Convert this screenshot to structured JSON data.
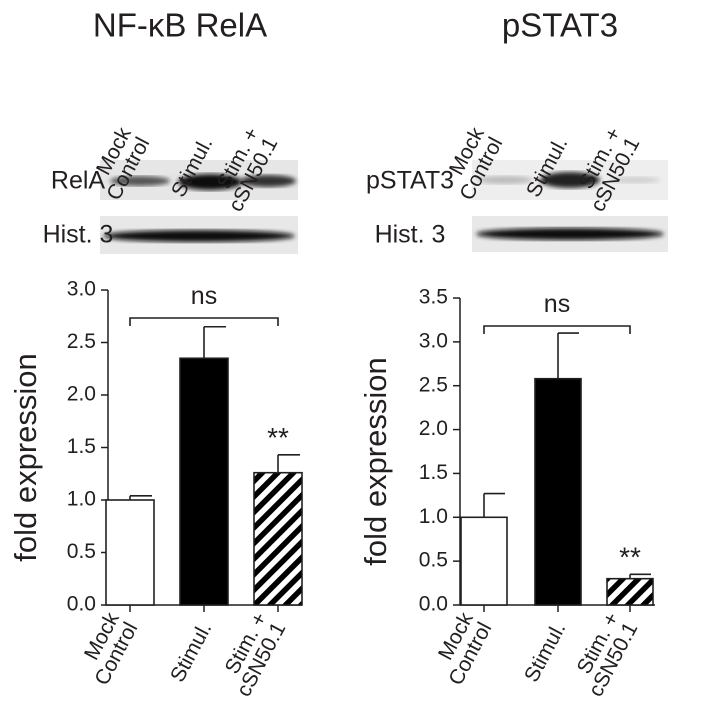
{
  "chart_data": [
    {
      "type": "bar",
      "title": "NF-κB RelA",
      "ylabel": "fold expression",
      "categories": [
        [
          "Mock",
          "Control"
        ],
        [
          "Stimul."
        ],
        [
          "Stim. +",
          "cSN50.1"
        ]
      ],
      "values": [
        1.0,
        2.35,
        1.26
      ],
      "errors": [
        0.04,
        0.3,
        0.17
      ],
      "fills": [
        "white",
        "black",
        "hatch"
      ],
      "significance": [
        null,
        null,
        "**"
      ],
      "bracket_label": "ns",
      "blots": [
        {
          "label": "RelA"
        },
        {
          "label": "Hist. 3"
        }
      ],
      "ylim": [
        0,
        3.0
      ],
      "yticks": [
        {
          "value": 0,
          "label": "0.0"
        },
        0.5,
        {
          "value": 1,
          "label": "1.0"
        },
        1.5,
        {
          "value": 2,
          "label": "2.0"
        },
        2.5,
        {
          "value": 3,
          "label": "3.0"
        }
      ]
    },
    {
      "type": "bar",
      "title": "pSTAT3",
      "ylabel": "fold expression",
      "categories": [
        [
          "Mock",
          "Control"
        ],
        [
          "Stimul."
        ],
        [
          "Stim. +",
          "cSN50.1"
        ]
      ],
      "values": [
        1.0,
        2.58,
        0.3
      ],
      "errors": [
        0.27,
        0.52,
        0.05
      ],
      "fills": [
        "white",
        "black",
        "hatch"
      ],
      "significance": [
        null,
        null,
        "**"
      ],
      "bracket_label": "ns",
      "blots": [
        {
          "label": "pSTAT3"
        },
        {
          "label": "Hist. 3"
        }
      ],
      "ylim": [
        0,
        3.5
      ],
      "yticks": [
        {
          "value": 0,
          "label": "0.0"
        },
        0.5,
        {
          "value": 1,
          "label": "1.0"
        },
        1.5,
        {
          "value": 2,
          "label": "2.0"
        },
        2.5,
        {
          "value": 3,
          "label": "3.0"
        },
        3.5
      ]
    }
  ]
}
